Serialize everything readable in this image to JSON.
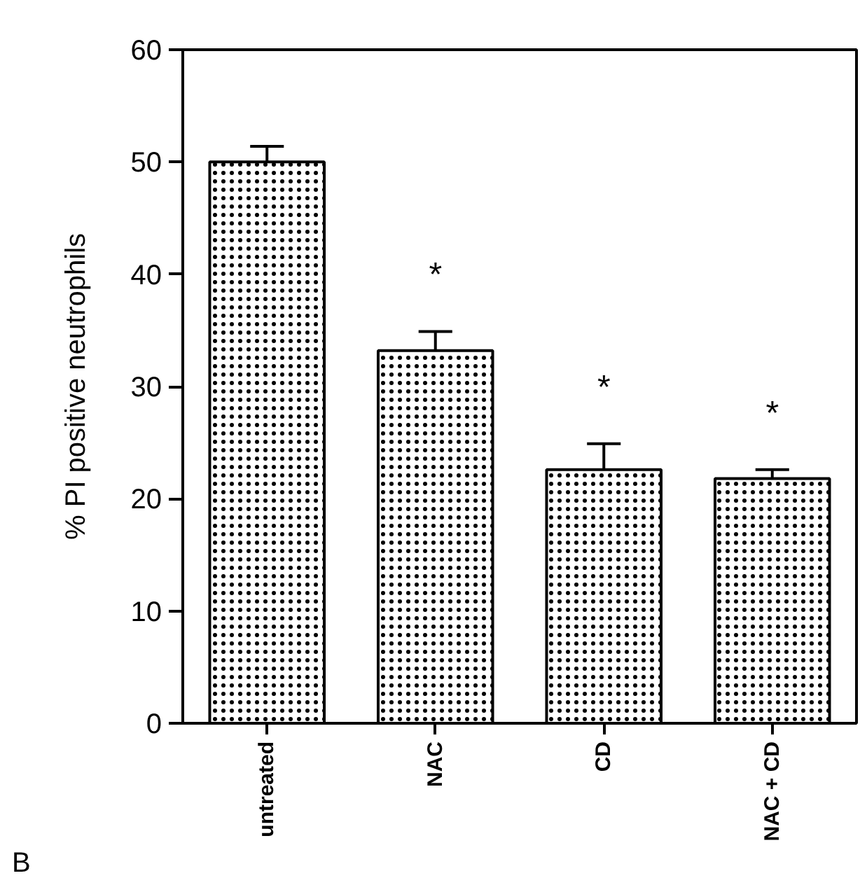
{
  "chart_data": {
    "type": "bar",
    "ylabel": "% PI positive neutrophils",
    "categories": [
      "untreated",
      "NAC",
      "CD",
      "NAC + CD"
    ],
    "values": [
      50,
      33.2,
      22.6,
      21.8
    ],
    "errors": [
      [
        50,
        51.4
      ],
      [
        33.2,
        34.9
      ],
      [
        22.6,
        24.9
      ],
      [
        21.8,
        22.6
      ]
    ],
    "color": "#ffffff",
    "ylim": [
      0,
      60
    ],
    "yticks": [
      0,
      10,
      20,
      30,
      40,
      50,
      60
    ],
    "grid": false,
    "annotations": [
      "*",
      "*",
      "*",
      "B"
    ]
  }
}
